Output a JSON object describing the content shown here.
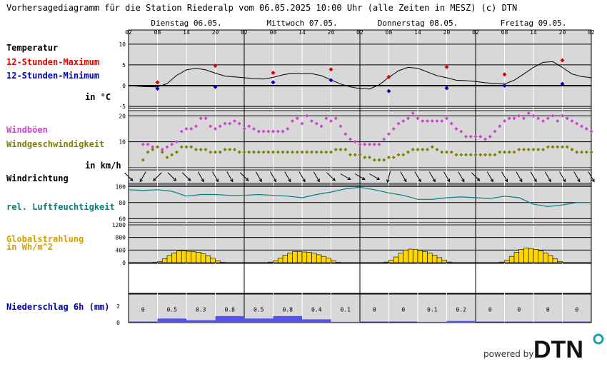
{
  "page": {
    "title": "Vorhersagediagramm für die Station Riederalp vom 06.05.2025 10:00 Uhr (alle Zeiten in MESZ)   (c) DTN",
    "powered_by": "powered by",
    "logo_text": "DTN"
  },
  "colors": {
    "panel_bg": "#d8d8d8",
    "temp_max": "#e00000",
    "temp_min": "#0000cc",
    "wind_gust": "#cc44cc",
    "wind_speed": "#808000",
    "humidity": "#008080",
    "radiation_fill": "#ffd700",
    "radiation_title": "#d4a000",
    "precip_fill": "#5555ee",
    "precip_title": "#0000aa"
  },
  "time_axis": {
    "days": [
      "Dienstag 06.05.",
      "Mittwoch 07.05.",
      "Donnerstag 08.05.",
      "Freitag 09.05."
    ],
    "hour_ticks": [
      "02",
      "08",
      "14",
      "20",
      "02",
      "08",
      "14",
      "20",
      "02",
      "08",
      "14",
      "20",
      "02",
      "08",
      "14",
      "20",
      "02"
    ]
  },
  "chart_data": [
    {
      "type": "line",
      "title": "Temperatur",
      "unit_label": "in °C",
      "ylim": [
        -5.5,
        11
      ],
      "yticks": [
        "10",
        "5",
        "0",
        "-5"
      ],
      "x_unit": "hours since 06.05. 02:00",
      "series": [
        {
          "name": "Temperatur",
          "x": [
            0,
            3,
            6,
            8,
            10,
            12,
            14,
            16,
            18,
            20,
            22,
            24,
            26,
            28,
            30,
            32,
            34,
            36,
            38,
            40,
            42,
            44,
            46,
            48,
            50,
            52,
            54,
            56,
            58,
            60,
            62,
            64,
            66,
            68,
            70,
            72,
            74,
            76,
            78,
            80,
            82,
            84,
            86,
            88,
            90,
            92,
            94,
            96
          ],
          "values": [
            0,
            -0.2,
            -0.3,
            0.5,
            2.5,
            3.8,
            4.2,
            3.8,
            3,
            2.3,
            2.1,
            1.9,
            1.7,
            1.6,
            2,
            2.6,
            3,
            2.9,
            2.9,
            2.4,
            1.4,
            0.4,
            -0.3,
            -0.7,
            -0.8,
            0.2,
            2,
            3.6,
            4.4,
            4.2,
            3.3,
            2.4,
            1.9,
            1.3,
            1.2,
            1.0,
            0.7,
            0.5,
            0.4,
            1.3,
            2.8,
            4.4,
            5.6,
            5.8,
            4.4,
            2.8,
            2.2,
            1.9
          ]
        },
        {
          "name": "12-Stunden-Maximum",
          "x": [
            6,
            18,
            30,
            42,
            54,
            66,
            78,
            90
          ],
          "values": [
            0.8,
            4.8,
            3.1,
            3.9,
            2.1,
            4.5,
            2.7,
            6.1
          ]
        },
        {
          "name": "12-Stunden-Minimum",
          "x": [
            6,
            18,
            30,
            42,
            54,
            66,
            78,
            90
          ],
          "values": [
            -0.7,
            -0.3,
            0.8,
            1.3,
            -1.3,
            -0.6,
            0.0,
            0.4
          ]
        }
      ]
    },
    {
      "type": "scatter",
      "title": "Windböen / Windgeschwindigkeit",
      "unit_label": "in km/h",
      "ylim": [
        0,
        22
      ],
      "yticks": [
        "20",
        "10"
      ],
      "x_unit": "hours since 06.05. 02:00",
      "series": [
        {
          "name": "Windböen",
          "x": [
            3,
            4,
            5,
            6,
            7,
            8,
            9,
            10,
            11,
            12,
            13,
            14,
            15,
            16,
            17,
            18,
            19,
            20,
            21,
            22,
            23,
            24,
            25,
            26,
            27,
            28,
            29,
            30,
            31,
            32,
            33,
            34,
            35,
            36,
            37,
            38,
            39,
            40,
            41,
            42,
            43,
            44,
            45,
            46,
            47,
            48,
            49,
            50,
            51,
            52,
            53,
            54,
            55,
            56,
            57,
            58,
            59,
            60,
            61,
            62,
            63,
            64,
            65,
            66,
            67,
            68,
            69,
            70,
            71,
            72,
            73,
            74,
            75,
            76,
            77,
            78,
            79,
            80,
            81,
            82,
            83,
            84,
            85,
            86,
            87,
            88,
            89,
            90,
            91,
            92,
            93,
            94,
            95,
            96
          ],
          "values": [
            9,
            9,
            8,
            8,
            7,
            8,
            9,
            10,
            14,
            15,
            15,
            16,
            19,
            19,
            16,
            15,
            16,
            17,
            17,
            18,
            17,
            15,
            16,
            15,
            14,
            14,
            14,
            14,
            14,
            14,
            15,
            18,
            19,
            17,
            20,
            18,
            17,
            16,
            19,
            18,
            19,
            16,
            13,
            11,
            10,
            9,
            9,
            9,
            9,
            9,
            11,
            13,
            15,
            17,
            18,
            19,
            21,
            19,
            18,
            18,
            18,
            18,
            18,
            19,
            17,
            15,
            14,
            12,
            12,
            12,
            12,
            11,
            12,
            14,
            16,
            18,
            19,
            19,
            20,
            19,
            21,
            20,
            19,
            18,
            19,
            20,
            18,
            20,
            19,
            18,
            17,
            16,
            15,
            14
          ]
        },
        {
          "name": "Windgeschwindigkeit",
          "x": [
            3,
            4,
            5,
            6,
            7,
            8,
            9,
            10,
            11,
            12,
            13,
            14,
            15,
            16,
            17,
            18,
            19,
            20,
            21,
            22,
            23,
            24,
            25,
            26,
            27,
            28,
            29,
            30,
            31,
            32,
            33,
            34,
            35,
            36,
            37,
            38,
            39,
            40,
            41,
            42,
            43,
            44,
            45,
            46,
            47,
            48,
            49,
            50,
            51,
            52,
            53,
            54,
            55,
            56,
            57,
            58,
            59,
            60,
            61,
            62,
            63,
            64,
            65,
            66,
            67,
            68,
            69,
            70,
            71,
            72,
            73,
            74,
            75,
            76,
            77,
            78,
            79,
            80,
            81,
            82,
            83,
            84,
            85,
            86,
            87,
            88,
            89,
            90,
            91,
            92,
            93,
            94,
            95,
            96
          ],
          "values": [
            3,
            6,
            7,
            8,
            6,
            4,
            5,
            6,
            8,
            8,
            8,
            7,
            7,
            7,
            6,
            6,
            6,
            7,
            7,
            7,
            6,
            6,
            6,
            6,
            6,
            6,
            6,
            6,
            6,
            6,
            6,
            6,
            6,
            6,
            6,
            6,
            6,
            6,
            6,
            6,
            7,
            7,
            7,
            5,
            5,
            5,
            4,
            4,
            3,
            3,
            3,
            4,
            4,
            5,
            5,
            6,
            7,
            7,
            7,
            7,
            8,
            7,
            6,
            6,
            6,
            5,
            5,
            5,
            5,
            5,
            5,
            5,
            5,
            5,
            6,
            6,
            6,
            6,
            7,
            7,
            7,
            7,
            7,
            7,
            8,
            8,
            8,
            8,
            8,
            7,
            6,
            6,
            6,
            6
          ]
        }
      ]
    },
    {
      "type": "table",
      "title": "Windrichtung",
      "x_unit": "hours since 06.05. 02:00",
      "x": [
        0,
        3,
        6,
        9,
        12,
        15,
        18,
        21,
        24,
        27,
        30,
        33,
        36,
        39,
        42,
        45,
        48,
        51,
        54,
        57,
        60,
        63,
        66,
        69,
        72,
        75,
        78,
        81,
        84,
        87,
        90,
        93,
        96
      ],
      "values_deg": [
        315,
        30,
        45,
        315,
        315,
        330,
        330,
        330,
        315,
        330,
        330,
        330,
        330,
        330,
        315,
        300,
        300,
        300,
        15,
        330,
        330,
        330,
        330,
        330,
        315,
        330,
        330,
        330,
        330,
        330,
        330,
        330,
        330
      ]
    },
    {
      "type": "line",
      "title": "rel. Luftfeuchtigkeit",
      "ylim": [
        55,
        102
      ],
      "yticks": [
        "100",
        "80",
        "60"
      ],
      "x_unit": "hours since 06.05. 02:00",
      "series": [
        {
          "name": "rel. Luftfeuchtigkeit",
          "x": [
            0,
            3,
            6,
            9,
            12,
            15,
            18,
            21,
            24,
            27,
            30,
            33,
            36,
            39,
            42,
            45,
            48,
            51,
            54,
            57,
            60,
            63,
            66,
            69,
            72,
            75,
            78,
            81,
            84,
            87,
            90,
            93,
            96
          ],
          "values": [
            96,
            95,
            96,
            94,
            88,
            90,
            90,
            89,
            89,
            90,
            89,
            88,
            86,
            90,
            93,
            97,
            99,
            96,
            92,
            89,
            84,
            84,
            86,
            87,
            86,
            85,
            88,
            86,
            78,
            75,
            77,
            80,
            80
          ]
        }
      ]
    },
    {
      "type": "bar",
      "title": "Globalstrahlung in Wh/m^2",
      "ylim": [
        0,
        1200
      ],
      "yticks": [
        "1200",
        "800",
        "400",
        "0"
      ],
      "x_unit": "hours since 06.05. 02:00",
      "x": [
        0,
        1,
        2,
        3,
        4,
        5,
        6,
        7,
        8,
        9,
        10,
        11,
        12,
        13,
        14,
        15,
        16,
        17,
        18,
        19,
        20,
        21,
        22,
        23,
        24,
        25,
        26,
        27,
        28,
        29,
        30,
        31,
        32,
        33,
        34,
        35,
        36,
        37,
        38,
        39,
        40,
        41,
        42,
        43,
        44,
        45,
        46,
        47,
        48,
        49,
        50,
        51,
        52,
        53,
        54,
        55,
        56,
        57,
        58,
        59,
        60,
        61,
        62,
        63,
        64,
        65,
        66,
        67,
        68,
        69,
        70,
        71,
        72,
        73,
        74,
        75,
        76,
        77,
        78,
        79,
        80,
        81,
        82,
        83,
        84,
        85,
        86,
        87,
        88,
        89,
        90,
        91,
        92,
        93,
        94,
        95
      ],
      "values": [
        0,
        0,
        0,
        0,
        0,
        10,
        40,
        120,
        230,
        310,
        370,
        380,
        360,
        350,
        330,
        280,
        220,
        140,
        60,
        10,
        0,
        0,
        0,
        0,
        0,
        0,
        0,
        0,
        0,
        20,
        60,
        140,
        240,
        310,
        350,
        350,
        340,
        330,
        300,
        250,
        200,
        140,
        60,
        10,
        0,
        0,
        0,
        0,
        0,
        0,
        0,
        0,
        0,
        20,
        80,
        180,
        300,
        400,
        430,
        420,
        390,
        350,
        300,
        240,
        160,
        80,
        20,
        0,
        0,
        0,
        0,
        0,
        0,
        0,
        0,
        0,
        0,
        20,
        80,
        200,
        330,
        420,
        470,
        450,
        420,
        380,
        310,
        230,
        120,
        40,
        0,
        0,
        0,
        0,
        0,
        0
      ]
    },
    {
      "type": "bar",
      "title": "Niederschlag 6h (mm)",
      "ylim": [
        0,
        3.5
      ],
      "yticks": [
        "2",
        "0"
      ],
      "x_unit": "hours since 06.05. 02:00",
      "x": [
        2,
        8,
        14,
        20,
        26,
        32,
        38,
        44,
        50,
        56,
        62,
        68,
        74,
        80,
        86,
        92
      ],
      "values": [
        0,
        0.5,
        0.3,
        0.8,
        0.5,
        0.8,
        0.4,
        0.1,
        0,
        0,
        0.1,
        0.2,
        0,
        0,
        0,
        0
      ],
      "labels": [
        "0",
        "0.5",
        "0.3",
        "0.8",
        "0.5",
        "0.8",
        "0.4",
        "0.1",
        "0",
        "0",
        "0.1",
        "0.2",
        "0",
        "0",
        "0",
        "0"
      ]
    }
  ],
  "labels": {
    "temp": "Temperatur",
    "tmax": "12-Stunden-Maximum",
    "tmin": "12-Stunden-Minimum",
    "temp_unit": "in °C",
    "gust": "Windböen",
    "wind": "Windgeschwindigkeit",
    "wind_unit": "in km/h",
    "wdir": "Windrichtung",
    "hum": "rel. Luftfeuchtigkeit",
    "rad_line1": "Globalstrahlung",
    "rad_line2": "in Wh/m^2",
    "precip": "Niederschlag 6h (mm)"
  }
}
